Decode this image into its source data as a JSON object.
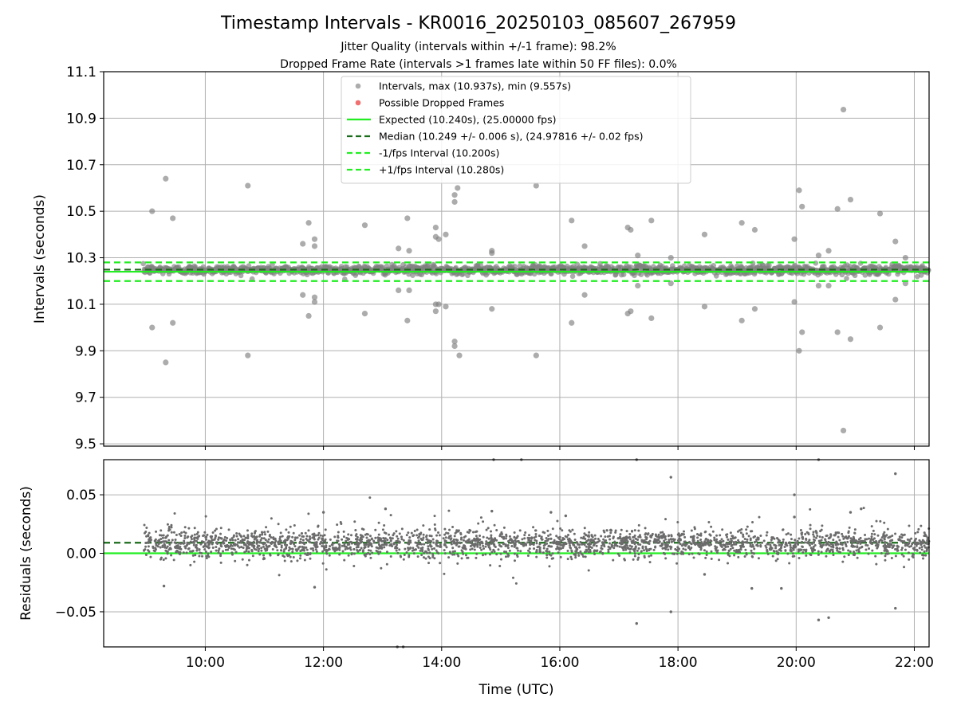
{
  "figure": {
    "title": "Timestamp Intervals - KR0016_20250103_085607_267959",
    "subtitle1": "Jitter Quality (intervals within +/-1 frame): 98.2%",
    "subtitle2": "Dropped Frame Rate (intervals >1 frames late within 50 FF files): 0.0%"
  },
  "colors": {
    "interval_points": "#808080",
    "dropped_points": "#f07070",
    "expected_line": "#22ee22",
    "median_line": "#1a6b1a",
    "fps_bound_line": "#22ee22",
    "residual_points": "#6b6b6b",
    "grid": "#b0b0b0"
  },
  "chart_data": [
    {
      "type": "scatter",
      "name": "intervals",
      "ylabel": "Intervals (seconds)",
      "xlabel": "",
      "x_unit": "hours UTC",
      "xlim": [
        8.28,
        22.25
      ],
      "ylim": [
        9.49,
        11.1
      ],
      "yticks": [
        "9.5",
        "9.7",
        "9.9",
        "10.1",
        "10.3",
        "10.5",
        "10.7",
        "10.9",
        "11.1"
      ],
      "ytick_values": [
        9.5,
        9.7,
        9.9,
        10.1,
        10.3,
        10.5,
        10.7,
        10.9,
        11.1
      ],
      "xtick_values": [
        10,
        12,
        14,
        16,
        18,
        20,
        22
      ],
      "grid": true,
      "legend_position": "upper center",
      "legend": [
        {
          "label": "Intervals, max (10.937s), min (9.557s)",
          "kind": "marker-gray"
        },
        {
          "label": "Possible Dropped Frames",
          "kind": "marker-red"
        },
        {
          "label": "Expected (10.240s), (25.00000 fps)",
          "kind": "line-solid-green"
        },
        {
          "label": "Median (10.249 +/- 0.006 s), (24.97816 +/- 0.02 fps)",
          "kind": "line-dashed-darkgreen"
        },
        {
          "label": "-1/fps Interval (10.200s)",
          "kind": "line-dashed-green"
        },
        {
          "label": "+1/fps Interval (10.280s)",
          "kind": "line-dashed-green"
        }
      ],
      "reference_lines": {
        "expected": 10.24,
        "median": 10.249,
        "minus_fps": 10.2,
        "plus_fps": 10.28
      },
      "data_span": {
        "start": 8.95,
        "end": 22.25
      },
      "core_band": {
        "center": 10.248,
        "spread": 0.012
      },
      "outliers": [
        [
          9.1,
          10.5
        ],
        [
          9.1,
          10.0
        ],
        [
          9.33,
          10.64
        ],
        [
          9.33,
          9.85
        ],
        [
          9.45,
          10.47
        ],
        [
          9.45,
          10.02
        ],
        [
          10.72,
          10.61
        ],
        [
          10.72,
          9.88
        ],
        [
          11.65,
          10.36
        ],
        [
          11.65,
          10.14
        ],
        [
          11.75,
          10.45
        ],
        [
          11.75,
          10.05
        ],
        [
          11.85,
          10.38
        ],
        [
          11.85,
          10.35
        ],
        [
          11.85,
          10.13
        ],
        [
          11.85,
          10.11
        ],
        [
          12.7,
          10.44
        ],
        [
          12.7,
          10.06
        ],
        [
          13.27,
          10.34
        ],
        [
          13.27,
          10.16
        ],
        [
          13.42,
          10.47
        ],
        [
          13.45,
          10.33
        ],
        [
          13.45,
          10.16
        ],
        [
          13.42,
          10.03
        ],
        [
          13.9,
          10.43
        ],
        [
          13.9,
          10.39
        ],
        [
          13.95,
          10.38
        ],
        [
          14.07,
          10.4
        ],
        [
          13.9,
          10.1
        ],
        [
          13.95,
          10.1
        ],
        [
          13.9,
          10.07
        ],
        [
          14.07,
          10.09
        ],
        [
          14.22,
          10.57
        ],
        [
          14.22,
          10.54
        ],
        [
          14.27,
          10.6
        ],
        [
          14.22,
          9.94
        ],
        [
          14.22,
          9.92
        ],
        [
          14.3,
          9.88
        ],
        [
          14.85,
          10.33
        ],
        [
          14.85,
          10.32
        ],
        [
          14.85,
          10.08
        ],
        [
          15.6,
          10.61
        ],
        [
          15.6,
          9.88
        ],
        [
          16.2,
          10.46
        ],
        [
          16.2,
          10.02
        ],
        [
          16.42,
          10.35
        ],
        [
          16.42,
          10.14
        ],
        [
          17.15,
          10.43
        ],
        [
          17.2,
          10.42
        ],
        [
          17.32,
          10.31
        ],
        [
          17.15,
          10.06
        ],
        [
          17.2,
          10.07
        ],
        [
          17.32,
          10.18
        ],
        [
          17.55,
          10.46
        ],
        [
          17.55,
          10.04
        ],
        [
          17.88,
          10.3
        ],
        [
          17.88,
          10.19
        ],
        [
          18.45,
          10.4
        ],
        [
          18.45,
          10.09
        ],
        [
          19.08,
          10.45
        ],
        [
          19.08,
          10.03
        ],
        [
          19.3,
          10.42
        ],
        [
          19.3,
          10.08
        ],
        [
          19.97,
          10.38
        ],
        [
          19.97,
          10.11
        ],
        [
          20.05,
          10.59
        ],
        [
          20.05,
          9.9
        ],
        [
          20.1,
          10.52
        ],
        [
          20.1,
          9.98
        ],
        [
          20.38,
          10.31
        ],
        [
          20.38,
          10.18
        ],
        [
          20.55,
          10.33
        ],
        [
          20.55,
          10.18
        ],
        [
          20.7,
          10.51
        ],
        [
          20.7,
          9.98
        ],
        [
          20.8,
          10.937
        ],
        [
          20.8,
          9.557
        ],
        [
          20.92,
          10.55
        ],
        [
          20.92,
          9.95
        ],
        [
          21.42,
          10.49
        ],
        [
          21.42,
          10.0
        ],
        [
          21.68,
          10.37
        ],
        [
          21.68,
          10.12
        ],
        [
          21.85,
          10.3
        ],
        [
          21.85,
          10.19
        ]
      ]
    },
    {
      "type": "scatter",
      "name": "residuals",
      "ylabel": "Residuals (seconds)",
      "xlabel": "Time (UTC)",
      "x_unit": "hours UTC",
      "xlim": [
        8.28,
        22.25
      ],
      "ylim": [
        -0.08,
        0.08
      ],
      "yticks": [
        "−0.05",
        "0.00",
        "0.05"
      ],
      "ytick_values": [
        -0.05,
        0.0,
        0.05
      ],
      "xticks": [
        "10:00",
        "12:00",
        "14:00",
        "16:00",
        "18:00",
        "20:00",
        "22:00"
      ],
      "xtick_values": [
        10,
        12,
        14,
        16,
        18,
        20,
        22
      ],
      "grid": true,
      "reference_lines": {
        "zero": 0.0,
        "median_offset": 0.009
      },
      "data_span": {
        "start": 8.95,
        "end": 22.25
      },
      "core_band": {
        "center": 0.008,
        "spread": 0.006
      },
      "outliers": [
        [
          11.85,
          -0.029
        ],
        [
          13.25,
          -0.08
        ],
        [
          13.35,
          -0.08
        ],
        [
          14.88,
          0.08
        ],
        [
          15.35,
          0.08
        ],
        [
          17.3,
          0.08
        ],
        [
          17.3,
          -0.06
        ],
        [
          17.88,
          0.065
        ],
        [
          17.88,
          -0.05
        ],
        [
          19.25,
          -0.03
        ],
        [
          19.75,
          -0.03
        ],
        [
          19.97,
          0.05
        ],
        [
          19.97,
          0.031
        ],
        [
          20.38,
          0.08
        ],
        [
          20.38,
          -0.057
        ],
        [
          20.55,
          -0.055
        ],
        [
          21.68,
          0.068
        ],
        [
          21.68,
          -0.047
        ],
        [
          20.92,
          0.035
        ],
        [
          21.1,
          0.038
        ],
        [
          18.45,
          -0.018
        ],
        [
          12.0,
          0.035
        ],
        [
          13.05,
          0.038
        ],
        [
          14.85,
          0.036
        ],
        [
          15.85,
          0.035
        ],
        [
          16.1,
          0.032
        ],
        [
          9.3,
          -0.028
        ]
      ]
    }
  ]
}
